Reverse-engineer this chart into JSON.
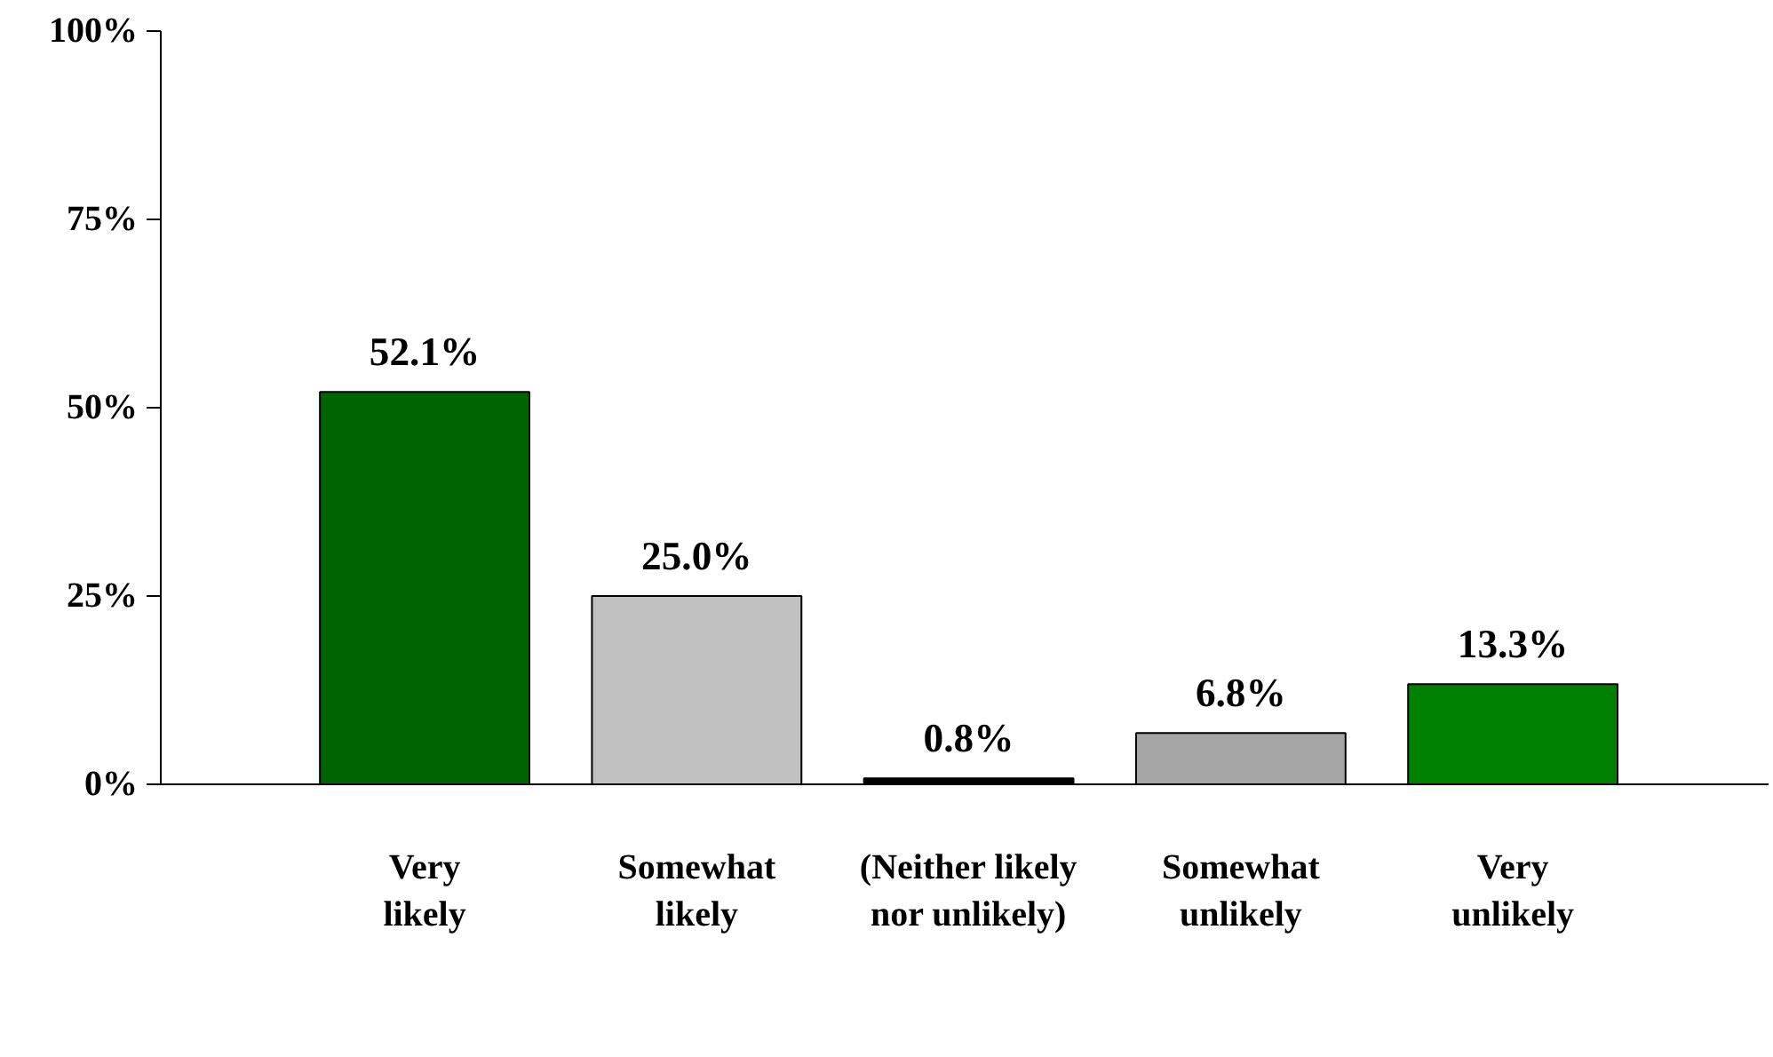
{
  "chart_data": {
    "type": "bar",
    "categories": [
      "Very likely",
      "Somewhat likely",
      "(Neither likely nor unlikely)",
      "Somewhat unlikely",
      "Very unlikely"
    ],
    "values": [
      52.1,
      25.0,
      0.8,
      6.8,
      13.3
    ],
    "colors": [
      "#006400",
      "#c0c0c0",
      "#000000",
      "#a6a6a6",
      "#008000"
    ],
    "value_labels": [
      "52.1%",
      "25.0%",
      "0.8%",
      "6.8%",
      "13.3%"
    ],
    "ylim": [
      0,
      100
    ],
    "yticks": [
      {
        "value": 0,
        "label": "0%"
      },
      {
        "value": 25,
        "label": "25%"
      },
      {
        "value": 50,
        "label": "50%"
      },
      {
        "value": 75,
        "label": "75%"
      },
      {
        "value": 100,
        "label": "100%"
      }
    ],
    "grid": false
  }
}
